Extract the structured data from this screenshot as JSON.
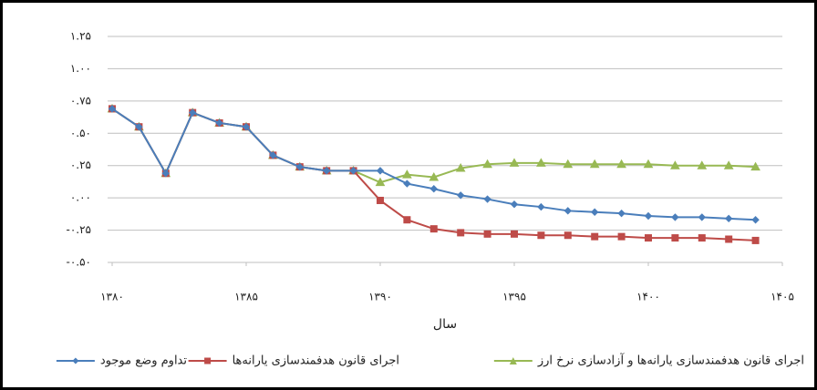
{
  "chart_data": {
    "type": "line",
    "x_label": "سال",
    "x": [
      1380,
      1381,
      1382,
      1383,
      1384,
      1385,
      1386,
      1387,
      1388,
      1389,
      1390,
      1391,
      1392,
      1393,
      1394,
      1395,
      1396,
      1397,
      1398,
      1399,
      1400,
      1401,
      1402,
      1403,
      1404
    ],
    "series": [
      {
        "name": "اجرای قانون هدفمندسازی یارانه‌ها و آزادسازی نرخ ارز",
        "color": "#98b954",
        "marker": "triangle",
        "values": [
          0.69,
          0.55,
          0.19,
          0.66,
          0.58,
          0.55,
          0.33,
          0.24,
          0.21,
          0.21,
          0.12,
          0.18,
          0.16,
          0.23,
          0.26,
          0.27,
          0.27,
          0.26,
          0.26,
          0.26,
          0.26,
          0.25,
          0.25,
          0.25,
          0.24
        ]
      },
      {
        "name": "اجرای قانون هدفمندسازی یارانه‌ها",
        "color": "#be4b48",
        "marker": "square",
        "values": [
          0.69,
          0.55,
          0.19,
          0.66,
          0.58,
          0.55,
          0.33,
          0.24,
          0.21,
          0.21,
          -0.02,
          -0.17,
          -0.24,
          -0.27,
          -0.28,
          -0.28,
          -0.29,
          -0.29,
          -0.3,
          -0.3,
          -0.31,
          -0.31,
          -0.31,
          -0.32,
          -0.33
        ]
      },
      {
        "name": "تداوم وضع موجود",
        "color": "#4a7ebb",
        "marker": "diamond",
        "values": [
          0.69,
          0.55,
          0.19,
          0.66,
          0.58,
          0.55,
          0.33,
          0.24,
          0.21,
          0.21,
          0.21,
          0.11,
          0.07,
          0.02,
          -0.01,
          -0.05,
          -0.07,
          -0.1,
          -0.11,
          -0.12,
          -0.14,
          -0.15,
          -0.15,
          -0.16,
          -0.17
        ]
      }
    ],
    "xlim": [
      1380,
      1405
    ],
    "xticks": [
      {
        "value": 1380,
        "label": "۱۳۸۰"
      },
      {
        "value": 1385,
        "label": "۱۳۸۵"
      },
      {
        "value": 1390,
        "label": "۱۳۹۰"
      },
      {
        "value": 1395,
        "label": "۱۳۹۵"
      },
      {
        "value": 1400,
        "label": "۱۴۰۰"
      },
      {
        "value": 1405,
        "label": "۱۴۰۵"
      }
    ],
    "ylim": [
      -0.5,
      1.25
    ],
    "yticks": [
      {
        "value": -0.5,
        "label": "-۰.۵۰"
      },
      {
        "value": -0.25,
        "label": "-۰.۲۵"
      },
      {
        "value": 0,
        "label": "۰.۰۰"
      },
      {
        "value": 0.25,
        "label": "۰.۲۵"
      },
      {
        "value": 0.5,
        "label": "۰.۵۰"
      },
      {
        "value": 0.75,
        "label": "۰.۷۵"
      },
      {
        "value": 1,
        "label": "۱.۰۰"
      },
      {
        "value": 1.25,
        "label": "۱.۲۵"
      }
    ],
    "grid": true,
    "legend": "bottom"
  }
}
